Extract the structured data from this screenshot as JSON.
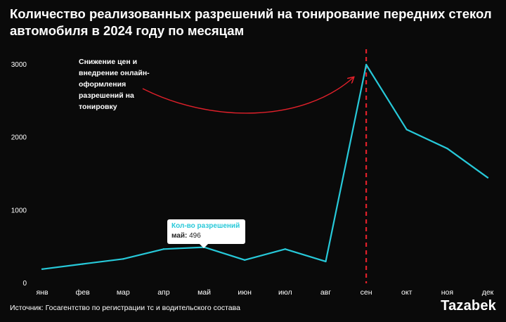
{
  "header": {
    "title": "Количество реализованных разрешений на тонирование передних стекол автомобиля в 2024 году по месяцам"
  },
  "annotation": {
    "text": "Снижение цен и внедрение онлайн-оформления разрешений на тонировку"
  },
  "tooltip": {
    "series_label": "Кол-во разрешений",
    "month": "май",
    "value": "496"
  },
  "footer": {
    "source": "Источник: Госагентство по регистрации тс и водительского состава",
    "logo": "Tazabek"
  },
  "colors": {
    "background": "#0a0a0a",
    "line": "#27c9d9",
    "marker": "#e0202a",
    "text": "#ffffff"
  },
  "chart_data": {
    "type": "line",
    "categories": [
      "янв",
      "фев",
      "мар",
      "апр",
      "май",
      "июн",
      "июл",
      "авг",
      "сен",
      "окт",
      "ноя",
      "дек"
    ],
    "series": [
      {
        "values": [
          195,
          265,
          335,
          470,
          496,
          320,
          470,
          300,
          3000,
          2110,
          1850,
          1450
        ]
      }
    ],
    "yticks": [
      0,
      1000,
      2000,
      3000
    ],
    "ylim": [
      0,
      3000
    ],
    "grid": false,
    "highlight_category": "сен",
    "tooltip_category": "май"
  }
}
